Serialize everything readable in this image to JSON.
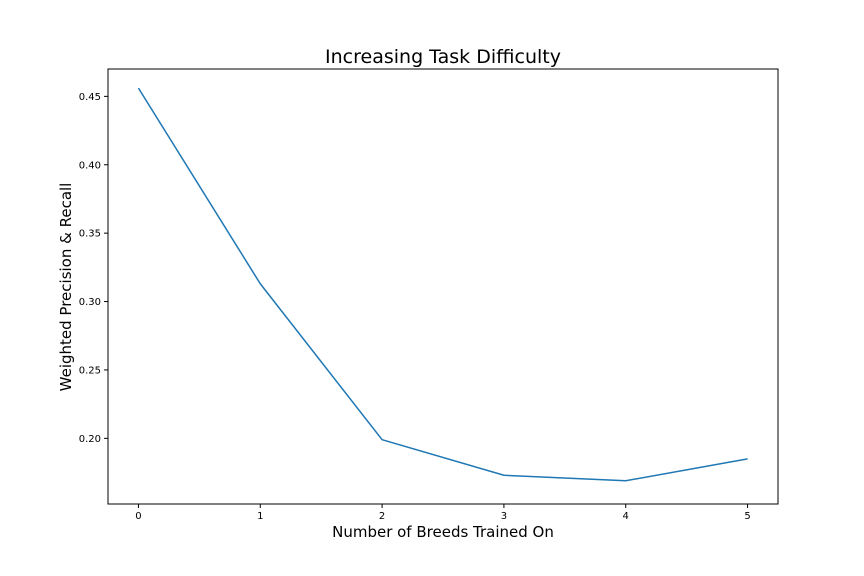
{
  "chart_data": {
    "type": "line",
    "title": "Increasing Task Difficulty",
    "xlabel": "Number of Breeds Trained On",
    "ylabel": "Weighted Precision & Recall",
    "x": [
      0,
      1,
      2,
      3,
      4,
      5
    ],
    "x_ticks": [
      "0",
      "1",
      "2",
      "3",
      "4",
      "5"
    ],
    "y_ticks": [
      "0.20",
      "0.25",
      "0.30",
      "0.35",
      "0.40",
      "0.45"
    ],
    "y_tick_values": [
      0.2,
      0.25,
      0.3,
      0.35,
      0.4,
      0.45
    ],
    "xlim": [
      -0.25,
      5.25
    ],
    "ylim": [
      0.152,
      0.47
    ],
    "grid": false,
    "series": [
      {
        "values": [
          0.456,
          0.313,
          0.199,
          0.173,
          0.169,
          0.185
        ],
        "color": "#1f77b4"
      }
    ]
  }
}
